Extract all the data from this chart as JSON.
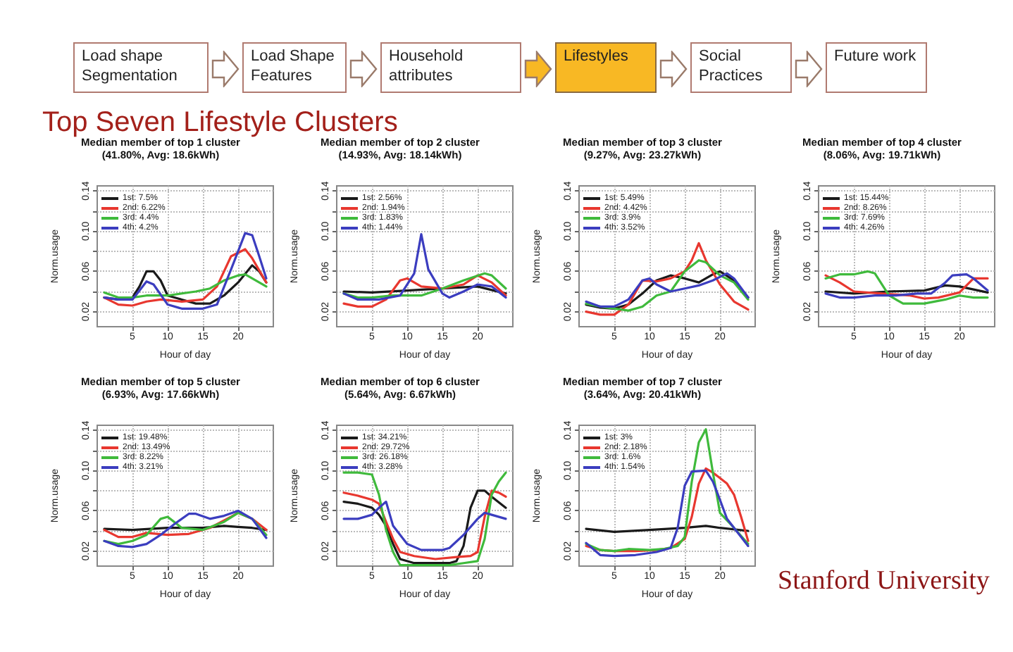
{
  "chart_data": [
    {
      "type": "other",
      "title": "Top Seven Lifestyle Clusters",
      "annotations": [
        "Load shape Segmentation",
        "Load Shape Features",
        "Household attributes",
        "Lifestyles",
        "Social Practices",
        "Future work",
        "Stanford University"
      ]
    },
    {
      "type": "line",
      "title": "Median member of top 1 cluster",
      "subtitle": "(41.80%, Avg: 18.6kWh)",
      "xlabel": "Hour of day",
      "ylabel": "Norm.usage",
      "xlim": [
        0,
        25
      ],
      "xticks": [
        5,
        10,
        15,
        20
      ],
      "ylim": [
        0.005,
        0.145
      ],
      "yticks": [
        0.02,
        {
          "value": 0.04,
          "label": null
        },
        0.06,
        {
          "value": 0.08,
          "label": null
        },
        {
          "value": 0.1,
          "label": "0.10"
        },
        {
          "value": 0.12,
          "label": null
        },
        0.14
      ],
      "grid": true,
      "legend": "top left",
      "marker": "none",
      "line_style": "solid",
      "series": [
        {
          "name": "1st: 7.5%",
          "color": "#1a1a1a",
          "x": [
            1,
            3,
            5,
            6,
            7,
            8,
            9,
            10,
            12,
            14,
            16,
            18,
            20,
            22,
            23,
            24
          ],
          "values": [
            0.034,
            0.032,
            0.034,
            0.045,
            0.06,
            0.06,
            0.051,
            0.036,
            0.032,
            0.028,
            0.028,
            0.036,
            0.049,
            0.066,
            0.06,
            0.049
          ]
        },
        {
          "name": "2nd: 6.22%",
          "color": "#e8372f",
          "x": [
            1,
            3,
            5,
            7,
            9,
            12,
            15,
            17,
            19,
            21,
            22,
            24
          ],
          "values": [
            0.034,
            0.027,
            0.026,
            0.03,
            0.032,
            0.03,
            0.032,
            0.045,
            0.075,
            0.082,
            0.073,
            0.049
          ]
        },
        {
          "name": "3rd: 4.4%",
          "color": "#3fba3c",
          "x": [
            1,
            3,
            5,
            7,
            10,
            14,
            16,
            18,
            20,
            21,
            22,
            24
          ],
          "values": [
            0.039,
            0.034,
            0.034,
            0.036,
            0.036,
            0.04,
            0.043,
            0.051,
            0.056,
            0.057,
            0.053,
            0.045
          ]
        },
        {
          "name": "4th: 4.2%",
          "color": "#3b3dbf",
          "x": [
            1,
            3,
            5,
            7,
            8,
            10,
            12,
            15,
            17,
            19,
            21,
            22,
            23,
            24
          ],
          "values": [
            0.034,
            0.032,
            0.032,
            0.05,
            0.047,
            0.027,
            0.023,
            0.023,
            0.027,
            0.062,
            0.098,
            0.096,
            0.075,
            0.053
          ]
        }
      ]
    },
    {
      "type": "line",
      "title": "Median member of top 2 cluster",
      "subtitle": "(14.93%, Avg: 18.14kWh)",
      "xlabel": "Hour of day",
      "ylabel": "Norm.usage",
      "xlim": [
        0,
        25
      ],
      "xticks": [
        5,
        10,
        15,
        20
      ],
      "ylim": [
        0.005,
        0.145
      ],
      "yticks": [
        0.02,
        {
          "value": 0.04,
          "label": null
        },
        0.06,
        {
          "value": 0.08,
          "label": null
        },
        {
          "value": 0.1,
          "label": "0.10"
        },
        {
          "value": 0.12,
          "label": null
        },
        0.14
      ],
      "grid": true,
      "legend": "top left",
      "marker": "none",
      "line_style": "solid",
      "series": [
        {
          "name": "1st: 2.56%",
          "color": "#1a1a1a",
          "x": [
            1,
            5,
            10,
            15,
            20,
            24
          ],
          "values": [
            0.04,
            0.039,
            0.041,
            0.043,
            0.045,
            0.038
          ]
        },
        {
          "name": "2nd: 1.94%",
          "color": "#e8372f",
          "x": [
            1,
            3,
            5,
            7,
            9,
            10,
            12,
            15,
            18,
            20,
            22,
            24
          ],
          "values": [
            0.028,
            0.025,
            0.025,
            0.032,
            0.051,
            0.053,
            0.045,
            0.043,
            0.047,
            0.056,
            0.049,
            0.036
          ]
        },
        {
          "name": "3rd: 1.83%",
          "color": "#3fba3c",
          "x": [
            1,
            3,
            5,
            8,
            12,
            15,
            18,
            21,
            22,
            24
          ],
          "values": [
            0.038,
            0.034,
            0.034,
            0.036,
            0.036,
            0.043,
            0.051,
            0.058,
            0.056,
            0.043
          ]
        },
        {
          "name": "4th: 1.44%",
          "color": "#3b3dbf",
          "x": [
            1,
            3,
            6,
            9,
            11,
            12,
            13,
            15,
            16,
            18,
            20,
            22,
            24
          ],
          "values": [
            0.038,
            0.032,
            0.032,
            0.036,
            0.058,
            0.097,
            0.062,
            0.038,
            0.034,
            0.04,
            0.047,
            0.045,
            0.034
          ]
        }
      ]
    },
    {
      "type": "line",
      "title": "Median member of top 3 cluster",
      "subtitle": "(9.27%, Avg: 23.27kWh)",
      "xlabel": "Hour of day",
      "ylabel": "Norm.usage",
      "xlim": [
        0,
        25
      ],
      "xticks": [
        5,
        10,
        15,
        20
      ],
      "ylim": [
        0.005,
        0.145
      ],
      "yticks": [
        0.02,
        {
          "value": 0.04,
          "label": null
        },
        0.06,
        {
          "value": 0.08,
          "label": null
        },
        {
          "value": 0.1,
          "label": "0.10"
        },
        {
          "value": 0.12,
          "label": null
        },
        0.14
      ],
      "grid": true,
      "legend": "top left",
      "marker": "none",
      "line_style": "solid",
      "series": [
        {
          "name": "1st: 5.49%",
          "color": "#1a1a1a",
          "x": [
            1,
            3,
            5,
            7,
            9,
            11,
            13,
            15,
            17,
            19,
            20,
            22,
            24
          ],
          "values": [
            0.027,
            0.024,
            0.023,
            0.027,
            0.038,
            0.051,
            0.056,
            0.053,
            0.049,
            0.057,
            0.06,
            0.051,
            0.034
          ]
        },
        {
          "name": "2nd: 4.42%",
          "color": "#e8372f",
          "x": [
            1,
            3,
            5,
            7,
            9,
            11,
            13,
            15,
            16,
            17,
            18,
            20,
            22,
            24
          ],
          "values": [
            0.02,
            0.017,
            0.017,
            0.027,
            0.051,
            0.05,
            0.053,
            0.06,
            0.071,
            0.088,
            0.071,
            0.047,
            0.03,
            0.022
          ]
        },
        {
          "name": "3rd: 3.9%",
          "color": "#3fba3c",
          "x": [
            1,
            3,
            5,
            7,
            9,
            11,
            13,
            15,
            17,
            18,
            20,
            22,
            24
          ],
          "values": [
            0.028,
            0.025,
            0.023,
            0.021,
            0.025,
            0.036,
            0.04,
            0.06,
            0.071,
            0.069,
            0.056,
            0.049,
            0.032
          ]
        },
        {
          "name": "4th: 3.52%",
          "color": "#3b3dbf",
          "x": [
            1,
            3,
            5,
            7,
            9,
            10,
            11,
            13,
            15,
            17,
            19,
            21,
            22,
            24
          ],
          "values": [
            0.03,
            0.025,
            0.025,
            0.032,
            0.051,
            0.053,
            0.047,
            0.04,
            0.043,
            0.046,
            0.051,
            0.058,
            0.053,
            0.034
          ]
        }
      ]
    },
    {
      "type": "line",
      "title": "Median member of top 4 cluster",
      "subtitle": "(8.06%, Avg: 19.71kWh)",
      "xlabel": "Hour of day",
      "ylabel": "Norm.usage",
      "xlim": [
        0,
        25
      ],
      "xticks": [
        5,
        10,
        15,
        20
      ],
      "ylim": [
        0.005,
        0.145
      ],
      "yticks": [
        0.02,
        {
          "value": 0.04,
          "label": null
        },
        0.06,
        {
          "value": 0.08,
          "label": null
        },
        {
          "value": 0.1,
          "label": "0.10"
        },
        {
          "value": 0.12,
          "label": null
        },
        0.14
      ],
      "grid": true,
      "legend": "top left",
      "marker": "none",
      "line_style": "solid",
      "series": [
        {
          "name": "1st: 15.44%",
          "color": "#1a1a1a",
          "x": [
            1,
            5,
            10,
            15,
            18,
            20,
            24
          ],
          "values": [
            0.04,
            0.038,
            0.04,
            0.041,
            0.046,
            0.045,
            0.039
          ]
        },
        {
          "name": "2nd: 8.26%",
          "color": "#e8372f",
          "x": [
            1,
            3,
            5,
            9,
            13,
            15,
            17,
            20,
            22,
            24
          ],
          "values": [
            0.056,
            0.049,
            0.04,
            0.038,
            0.036,
            0.033,
            0.034,
            0.039,
            0.053,
            0.053
          ]
        },
        {
          "name": "3rd: 7.69%",
          "color": "#3fba3c",
          "x": [
            1,
            3,
            5,
            7,
            8,
            10,
            12,
            15,
            18,
            20,
            22,
            24
          ],
          "values": [
            0.053,
            0.057,
            0.057,
            0.06,
            0.058,
            0.036,
            0.028,
            0.028,
            0.032,
            0.036,
            0.034,
            0.034
          ]
        },
        {
          "name": "4th: 4.26%",
          "color": "#3b3dbf",
          "x": [
            1,
            3,
            5,
            8,
            11,
            14,
            16,
            18,
            19,
            21,
            22,
            24
          ],
          "values": [
            0.038,
            0.034,
            0.034,
            0.036,
            0.036,
            0.038,
            0.038,
            0.049,
            0.056,
            0.057,
            0.053,
            0.041
          ]
        }
      ]
    },
    {
      "type": "line",
      "title": "Median member of top 5 cluster",
      "subtitle": "(6.93%, Avg: 17.66kWh)",
      "xlabel": "Hour of day",
      "ylabel": "Norm.usage",
      "xlim": [
        0,
        25
      ],
      "xticks": [
        5,
        10,
        15,
        20
      ],
      "ylim": [
        0.005,
        0.145
      ],
      "yticks": [
        0.02,
        {
          "value": 0.04,
          "label": null
        },
        0.06,
        {
          "value": 0.08,
          "label": null
        },
        {
          "value": 0.1,
          "label": "0.10"
        },
        {
          "value": 0.12,
          "label": null
        },
        0.14
      ],
      "grid": true,
      "legend": "top left",
      "marker": "none",
      "line_style": "solid",
      "series": [
        {
          "name": "1st: 19.48%",
          "color": "#1a1a1a",
          "x": [
            1,
            5,
            10,
            15,
            18,
            20,
            22,
            24
          ],
          "values": [
            0.042,
            0.041,
            0.043,
            0.043,
            0.045,
            0.044,
            0.043,
            0.041
          ]
        },
        {
          "name": "2nd: 13.49%",
          "color": "#e8372f",
          "x": [
            1,
            3,
            5,
            7,
            10,
            13,
            16,
            19,
            20,
            22,
            24
          ],
          "values": [
            0.041,
            0.034,
            0.034,
            0.038,
            0.036,
            0.037,
            0.043,
            0.054,
            0.058,
            0.052,
            0.041
          ]
        },
        {
          "name": "3rd: 8.22%",
          "color": "#3fba3c",
          "x": [
            1,
            3,
            5,
            7,
            9,
            10,
            12,
            15,
            18,
            20,
            22,
            24
          ],
          "values": [
            0.03,
            0.027,
            0.03,
            0.036,
            0.052,
            0.054,
            0.043,
            0.041,
            0.049,
            0.058,
            0.052,
            0.036
          ]
        },
        {
          "name": "4th: 3.21%",
          "color": "#3b3dbf",
          "x": [
            1,
            3,
            5,
            7,
            9,
            11,
            13,
            14,
            16,
            18,
            20,
            22,
            24
          ],
          "values": [
            0.03,
            0.025,
            0.024,
            0.027,
            0.036,
            0.047,
            0.057,
            0.057,
            0.052,
            0.055,
            0.06,
            0.052,
            0.033
          ]
        }
      ]
    },
    {
      "type": "line",
      "title": "Median member of top 6 cluster",
      "subtitle": "(5.64%, Avg: 6.67kWh)",
      "xlabel": "Hour of day",
      "ylabel": "Norm.usage",
      "xlim": [
        0,
        25
      ],
      "xticks": [
        5,
        10,
        15,
        20
      ],
      "ylim": [
        0.005,
        0.145
      ],
      "yticks": [
        0.02,
        {
          "value": 0.04,
          "label": null
        },
        0.06,
        {
          "value": 0.08,
          "label": null
        },
        {
          "value": 0.1,
          "label": "0.10"
        },
        {
          "value": 0.12,
          "label": null
        },
        0.14
      ],
      "grid": true,
      "legend": "top left",
      "marker": "none",
      "line_style": "solid",
      "series": [
        {
          "name": "1st: 34.21%",
          "color": "#1a1a1a",
          "x": [
            1,
            3,
            5,
            6,
            7,
            8,
            9,
            11,
            14,
            16,
            17,
            18,
            19,
            20,
            21,
            22,
            24
          ],
          "values": [
            0.069,
            0.067,
            0.063,
            0.056,
            0.045,
            0.027,
            0.012,
            0.008,
            0.008,
            0.008,
            0.01,
            0.025,
            0.063,
            0.08,
            0.08,
            0.074,
            0.063
          ]
        },
        {
          "name": "2nd: 29.72%",
          "color": "#e8372f",
          "x": [
            1,
            3,
            5,
            6,
            7,
            8,
            9,
            11,
            14,
            17,
            19,
            20,
            21,
            22,
            23,
            24
          ],
          "values": [
            0.078,
            0.075,
            0.071,
            0.067,
            0.049,
            0.032,
            0.019,
            0.015,
            0.012,
            0.014,
            0.015,
            0.019,
            0.054,
            0.08,
            0.078,
            0.074
          ]
        },
        {
          "name": "3rd: 26.18%",
          "color": "#3fba3c",
          "x": [
            1,
            3,
            5,
            6,
            7,
            8,
            9,
            12,
            16,
            18,
            20,
            21,
            22,
            23,
            24
          ],
          "values": [
            0.098,
            0.098,
            0.096,
            0.076,
            0.041,
            0.019,
            0.006,
            0.006,
            0.006,
            0.008,
            0.01,
            0.032,
            0.076,
            0.089,
            0.098
          ]
        },
        {
          "name": "4th: 3.28%",
          "color": "#3b3dbf",
          "x": [
            1,
            3,
            5,
            6,
            7,
            8,
            10,
            12,
            15,
            16,
            18,
            20,
            21,
            22,
            24
          ],
          "values": [
            0.052,
            0.052,
            0.056,
            0.063,
            0.069,
            0.045,
            0.027,
            0.021,
            0.021,
            0.023,
            0.036,
            0.052,
            0.058,
            0.056,
            0.052
          ]
        }
      ]
    },
    {
      "type": "line",
      "title": "Median member of top 7 cluster",
      "subtitle": "(3.64%, Avg: 20.41kWh)",
      "xlabel": "Hour of day",
      "ylabel": "Norm.usage",
      "xlim": [
        0,
        25
      ],
      "xticks": [
        5,
        10,
        15,
        20
      ],
      "ylim": [
        0.005,
        0.145
      ],
      "yticks": [
        0.02,
        {
          "value": 0.04,
          "label": null
        },
        0.06,
        {
          "value": 0.08,
          "label": null
        },
        {
          "value": 0.1,
          "label": "0.10"
        },
        {
          "value": 0.12,
          "label": null
        },
        0.14
      ],
      "grid": true,
      "legend": "top left",
      "marker": "none",
      "line_style": "solid",
      "series": [
        {
          "name": "1st: 3%",
          "color": "#1a1a1a",
          "x": [
            1,
            5,
            10,
            15,
            18,
            20,
            24
          ],
          "values": [
            0.042,
            0.039,
            0.041,
            0.043,
            0.045,
            0.043,
            0.04
          ]
        },
        {
          "name": "2nd: 2.18%",
          "color": "#e8372f",
          "x": [
            1,
            3,
            5,
            8,
            11,
            13,
            15,
            16,
            17,
            18,
            19,
            21,
            22,
            23,
            24
          ],
          "values": [
            0.025,
            0.021,
            0.02,
            0.02,
            0.021,
            0.023,
            0.032,
            0.054,
            0.087,
            0.102,
            0.098,
            0.087,
            0.076,
            0.054,
            0.03
          ]
        },
        {
          "name": "3rd: 1.6%",
          "color": "#3fba3c",
          "x": [
            1,
            3,
            5,
            7,
            10,
            12,
            14,
            15,
            16,
            17,
            18,
            19,
            20,
            22,
            24
          ],
          "values": [
            0.027,
            0.021,
            0.02,
            0.022,
            0.021,
            0.022,
            0.025,
            0.034,
            0.089,
            0.128,
            0.141,
            0.098,
            0.058,
            0.043,
            0.027
          ]
        },
        {
          "name": "4th: 1.54%",
          "color": "#3b3dbf",
          "x": [
            1,
            3,
            5,
            8,
            11,
            13,
            14,
            15,
            16,
            18,
            19,
            20,
            21,
            22,
            24
          ],
          "values": [
            0.028,
            0.016,
            0.015,
            0.016,
            0.019,
            0.023,
            0.043,
            0.085,
            0.099,
            0.1,
            0.089,
            0.071,
            0.052,
            0.043,
            0.025
          ]
        }
      ]
    }
  ]
}
